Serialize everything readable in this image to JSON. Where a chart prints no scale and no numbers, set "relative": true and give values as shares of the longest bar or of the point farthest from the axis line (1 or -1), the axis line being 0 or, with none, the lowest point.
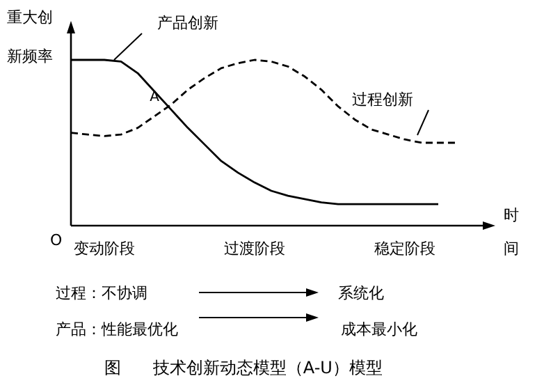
{
  "chart_data": {
    "type": "line",
    "relative": true,
    "ylabel": "重大创新频率",
    "xlabel": "时间",
    "categories": [
      null,
      null,
      "变动阶段",
      null,
      null,
      null,
      null,
      null,
      null,
      null,
      null,
      "过渡阶段",
      null,
      null,
      null,
      null,
      null,
      null,
      null,
      null,
      "稳定阶段",
      null,
      null,
      null
    ],
    "series": [
      {
        "name": "产品创新",
        "color": "#000000",
        "line_style": "solid",
        "values": [
          1.0,
          1.0,
          1.0,
          0.99,
          0.92,
          0.81,
          0.7,
          0.59,
          0.49,
          0.39,
          0.32,
          0.26,
          0.21,
          0.18,
          0.16,
          0.14,
          0.13,
          0.13,
          0.13,
          0.13,
          0.13,
          0.13,
          0.13,
          null
        ]
      },
      {
        "name": "过程创新",
        "color": "#000000",
        "line_style": "dashed",
        "values": [
          0.56,
          0.55,
          0.54,
          0.55,
          0.59,
          0.66,
          0.73,
          0.82,
          0.89,
          0.95,
          0.98,
          1.0,
          0.99,
          0.96,
          0.9,
          0.82,
          0.72,
          0.64,
          0.58,
          0.55,
          0.52,
          0.5,
          0.5,
          0.5
        ]
      }
    ],
    "annotations": [
      "O",
      "A",
      "过程：不协调",
      "系统化",
      "产品：性能最优化",
      "成本最小化",
      "图      技术创新动态模型（A-U）模型"
    ]
  }
}
